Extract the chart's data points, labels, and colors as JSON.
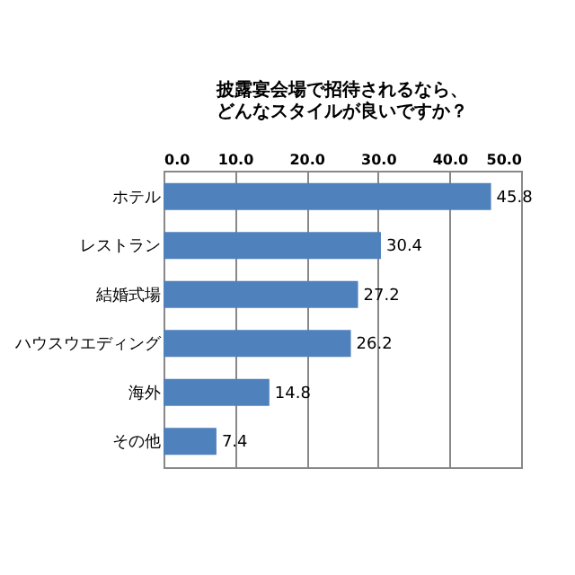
{
  "chart_data": {
    "type": "bar",
    "orientation": "horizontal",
    "title": "披露宴会場で招待されるなら、どんなスタイルが良いですか？",
    "categories": [
      "ホテル",
      "レストラン",
      "結婚式場",
      "ハウスウエディング",
      "海外",
      "その他"
    ],
    "values": [
      45.8,
      30.4,
      27.2,
      26.2,
      14.8,
      7.4
    ],
    "color": "#4f81bd",
    "xlim": [
      0,
      50
    ],
    "xticks": [
      {
        "value": 0,
        "label": "0.0"
      },
      {
        "value": 10,
        "label": "10.0"
      },
      {
        "value": 20,
        "label": "20.0"
      },
      {
        "value": 30,
        "label": "30.0"
      },
      {
        "value": 40,
        "label": "40.0"
      },
      {
        "value": 50,
        "label": "50.0"
      }
    ],
    "grid": "x",
    "data_labels": true
  }
}
